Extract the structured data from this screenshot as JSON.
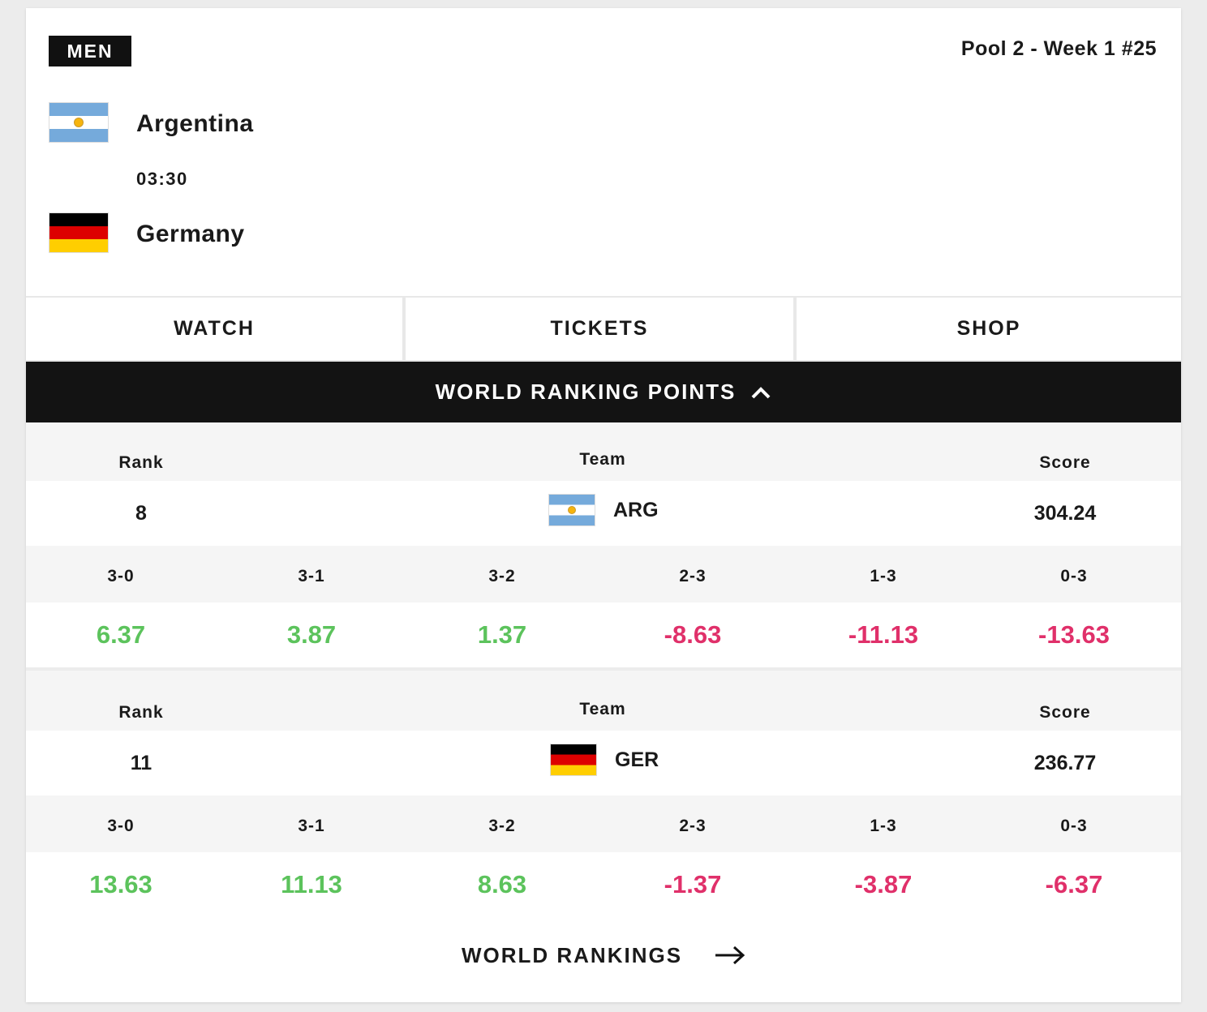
{
  "match": {
    "category": "MEN",
    "pool_info": "Pool 2 - Week 1 #25",
    "home_team": "Argentina",
    "away_team": "Germany",
    "time": "03:30",
    "home_flag": "argentina-flag",
    "away_flag": "germany-flag"
  },
  "actions": {
    "watch": "WATCH",
    "tickets": "TICKETS",
    "shop": "SHOP"
  },
  "wrp": {
    "title": "WORLD RANKING POINTS",
    "toggle_icon": "chevron-up-icon"
  },
  "columns": {
    "rank": "Rank",
    "team": "Team",
    "score": "Score"
  },
  "scenarios": [
    "3-0",
    "3-1",
    "3-2",
    "2-3",
    "1-3",
    "0-3"
  ],
  "teams": [
    {
      "rank": "8",
      "code": "ARG",
      "score": "304.24",
      "points": [
        "6.37",
        "3.87",
        "1.37",
        "-8.63",
        "-11.13",
        "-13.63"
      ]
    },
    {
      "rank": "11",
      "code": "GER",
      "score": "236.77",
      "points": [
        "13.63",
        "11.13",
        "8.63",
        "-1.37",
        "-3.87",
        "-6.37"
      ]
    }
  ],
  "colors": {
    "positive": "#5cc35c",
    "negative": "#e0306a",
    "dark": "#131313"
  },
  "footer": {
    "link": "WORLD RANKINGS",
    "icon": "arrow-right-icon"
  }
}
